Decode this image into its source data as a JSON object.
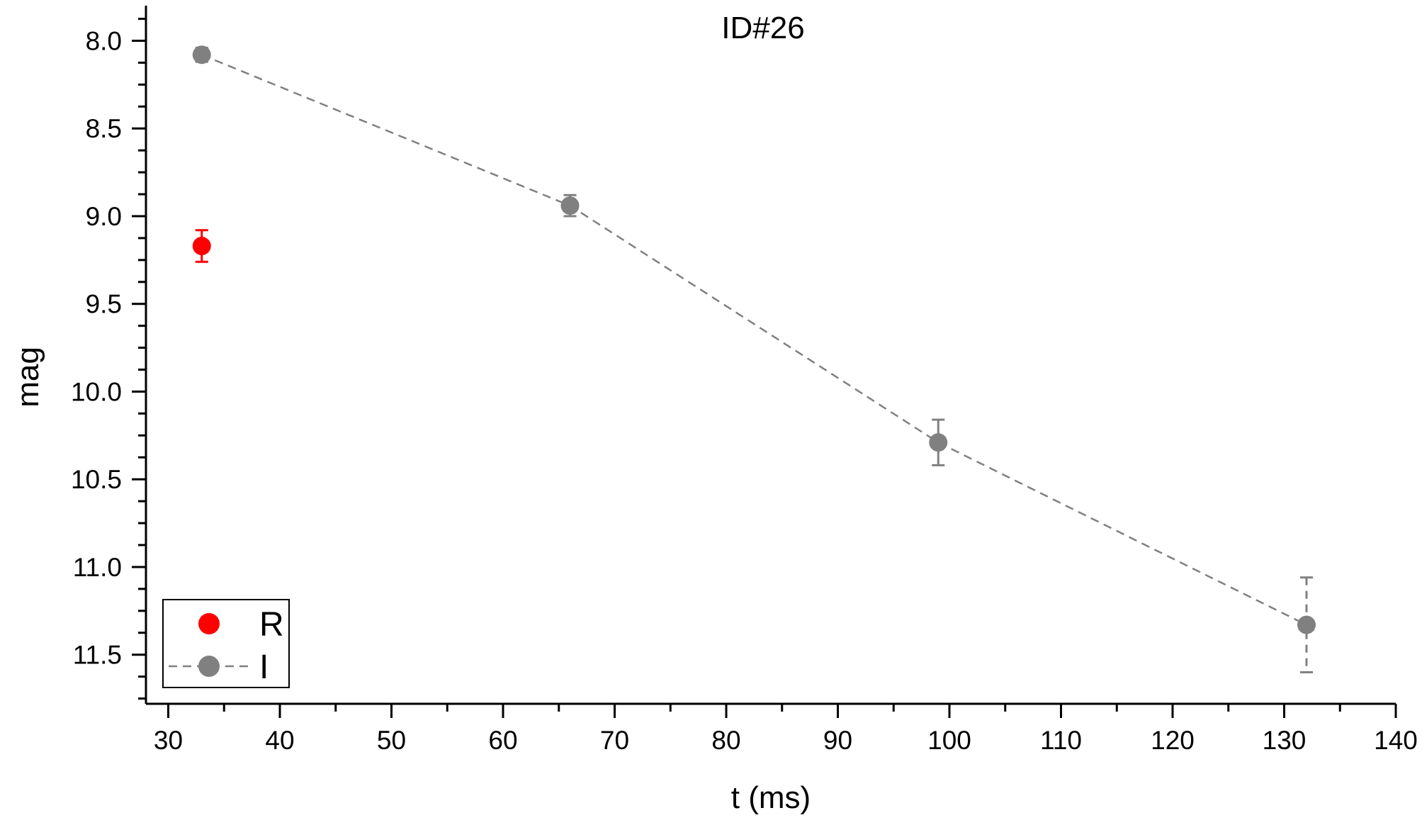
{
  "chart_data": {
    "type": "scatter",
    "title": "ID#26",
    "xlabel": "t (ms)",
    "ylabel": "mag",
    "xlim": [
      28,
      140
    ],
    "ylim": [
      11.78,
      7.8
    ],
    "y_axis_inverted": true,
    "x_ticks": [
      30,
      40,
      50,
      60,
      70,
      80,
      90,
      100,
      110,
      120,
      130,
      140
    ],
    "x_tick_labels": [
      "30",
      "40",
      "50",
      "60",
      "70",
      "80",
      "90",
      "100",
      "110",
      "120",
      "130",
      "140"
    ],
    "y_ticks": [
      8.0,
      8.5,
      9.0,
      9.5,
      10.0,
      10.5,
      11.0,
      11.5
    ],
    "y_tick_labels": [
      "8.0",
      "8.5",
      "9.0",
      "9.5",
      "10.0",
      "10.5",
      "11.0",
      "11.5"
    ],
    "grid": false,
    "legend_position": "bottom-left",
    "series": [
      {
        "name": "R",
        "color": "#ff0000",
        "line": "none",
        "marker": "circle",
        "x": [
          33
        ],
        "y": [
          9.17
        ],
        "error": [
          0.09
        ]
      },
      {
        "name": "I",
        "color": "#808080",
        "line": "dashed",
        "marker": "circle",
        "x": [
          33,
          66,
          99,
          132
        ],
        "y": [
          8.08,
          8.94,
          10.29,
          11.33
        ],
        "error": [
          0.04,
          0.06,
          0.13,
          0.27
        ]
      }
    ]
  }
}
